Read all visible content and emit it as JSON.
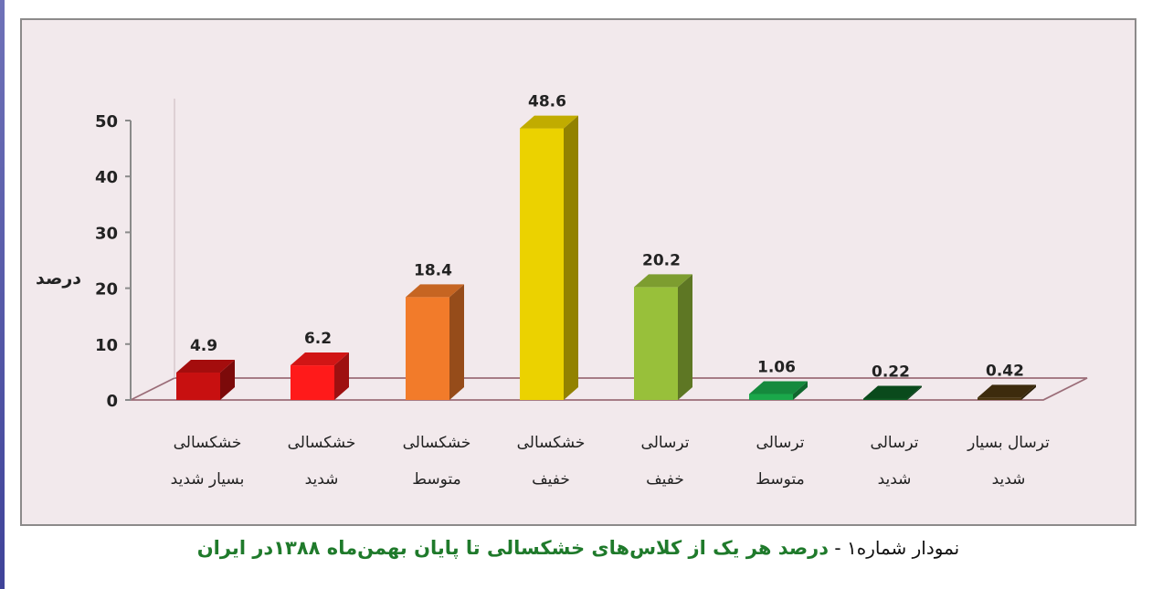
{
  "caption": {
    "prefix": "نمودار شماره۱ -",
    "title": "درصد هر یک از کلاس‌های خشکسالی تا پایان بهمن‌ماه  ۱۳۸۸در ایران"
  },
  "chart_data": {
    "type": "bar",
    "ylabel": "درصد",
    "ylim": [
      0,
      50
    ],
    "yticks": [
      0,
      10,
      20,
      30,
      40,
      50
    ],
    "grid": false,
    "categories": [
      [
        "خشکسالی",
        "بسیار شدید"
      ],
      [
        "خشکسالی",
        "شدید"
      ],
      [
        "خشکسالی",
        "متوسط"
      ],
      [
        "خشکسالی",
        "خفیف"
      ],
      [
        "ترسالی",
        "خفیف"
      ],
      [
        "ترسالی",
        "متوسط"
      ],
      [
        "ترسالی",
        "شدید"
      ],
      [
        "ترسال بسیار",
        "شدید"
      ]
    ],
    "values": [
      4.9,
      6.2,
      18.4,
      48.6,
      20.2,
      1.06,
      0.22,
      0.42
    ],
    "value_labels": [
      "4.9",
      "6.2",
      "18.4",
      "48.6",
      "20.2",
      "1.06",
      "0.22",
      "0.42"
    ],
    "colors": [
      "#c81010",
      "#ff1a1a",
      "#f27b2a",
      "#ebd200",
      "#98c03a",
      "#1aa84a",
      "#0c5a22",
      "#4a3510"
    ]
  }
}
